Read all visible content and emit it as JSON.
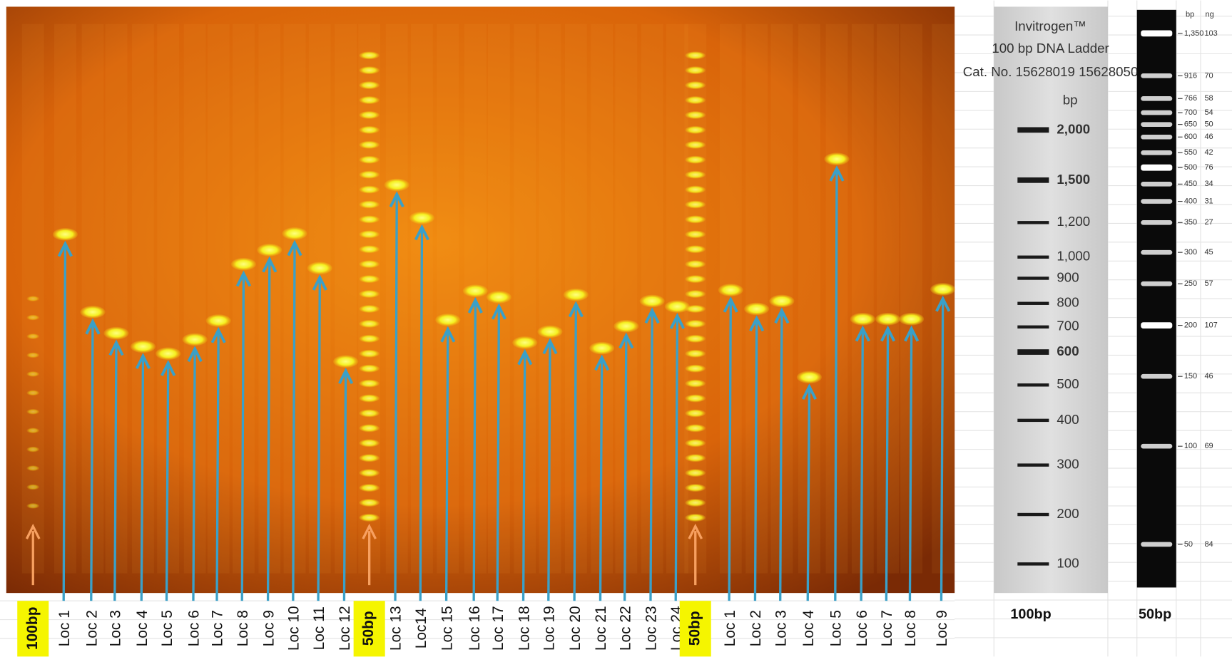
{
  "gel": {
    "lanes": [
      "100bp",
      "Loc 1",
      "Loc 2",
      "Loc 3",
      "Loc 4",
      "Loc 5",
      "Loc 6",
      "Loc 7",
      "Loc 8",
      "Loc 9",
      "Loc 10",
      "Loc 11",
      "Loc 12",
      "50bp",
      "Loc 13",
      "Loc14",
      "Loc 15",
      "Loc 16",
      "Loc 17",
      "Loc 18",
      "Loc 19",
      "Loc 20",
      "Loc 21",
      "Loc 22",
      "Loc 23",
      "Loc 24",
      "50bp",
      "Loc 1",
      "Loc 2",
      "Loc 3",
      "Loc 4",
      "Loc 5",
      "Loc 6",
      "Loc 7",
      "Loc 8",
      "Loc 9"
    ]
  },
  "ladder_100bp": {
    "brand": "Invitrogen™",
    "title": "100 bp DNA Ladder",
    "catalog": "Cat. No. 15628019 15628050",
    "unit": "bp",
    "sizes": [
      "2,000",
      "1,500",
      "1,200",
      "1,000",
      "900",
      "800",
      "700",
      "600",
      "500",
      "400",
      "300",
      "200",
      "100"
    ],
    "caption": "100bp"
  },
  "ladder_50bp": {
    "bp_header": "bp",
    "ng_header": "ng",
    "sizes": [
      "1,350",
      "916",
      "766",
      "700",
      "650",
      "600",
      "550",
      "500",
      "450",
      "400",
      "350",
      "300",
      "250",
      "200",
      "150",
      "100",
      "50"
    ],
    "ng": [
      "103",
      "70",
      "58",
      "54",
      "50",
      "46",
      "42",
      "76",
      "34",
      "31",
      "27",
      "45",
      "57",
      "107",
      "46",
      "69",
      "84"
    ],
    "caption": "50bp"
  }
}
